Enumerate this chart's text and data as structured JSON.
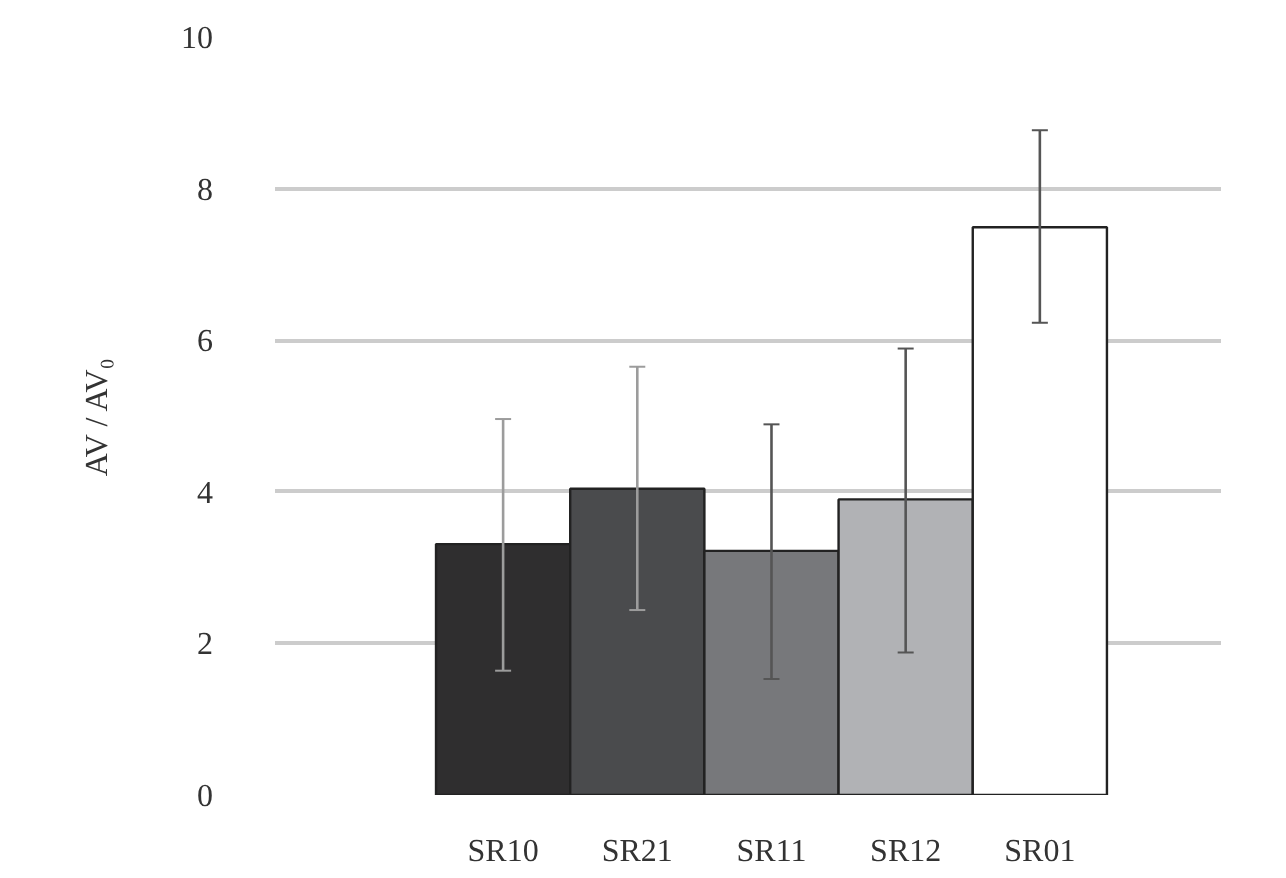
{
  "chart_data": {
    "type": "bar",
    "ylabel": "AV / AV₀",
    "categories": [
      "SR10",
      "SR21",
      "SR11",
      "SR12",
      "SR01"
    ],
    "values": [
      3.31,
      4.04,
      3.22,
      3.9,
      7.49
    ],
    "colors": [
      "#2f2e2f",
      "#4a4b4d",
      "#77787b",
      "#b1b2b5",
      "#ffffff"
    ],
    "errors": [
      [
        1.64,
        4.96
      ],
      [
        2.44,
        5.65
      ],
      [
        1.53,
        4.89
      ],
      [
        1.88,
        5.89
      ],
      [
        6.23,
        8.77
      ]
    ],
    "ylim": [
      0,
      10
    ],
    "yticks": [
      0,
      2,
      4,
      6,
      8,
      10
    ],
    "grid": "y"
  }
}
